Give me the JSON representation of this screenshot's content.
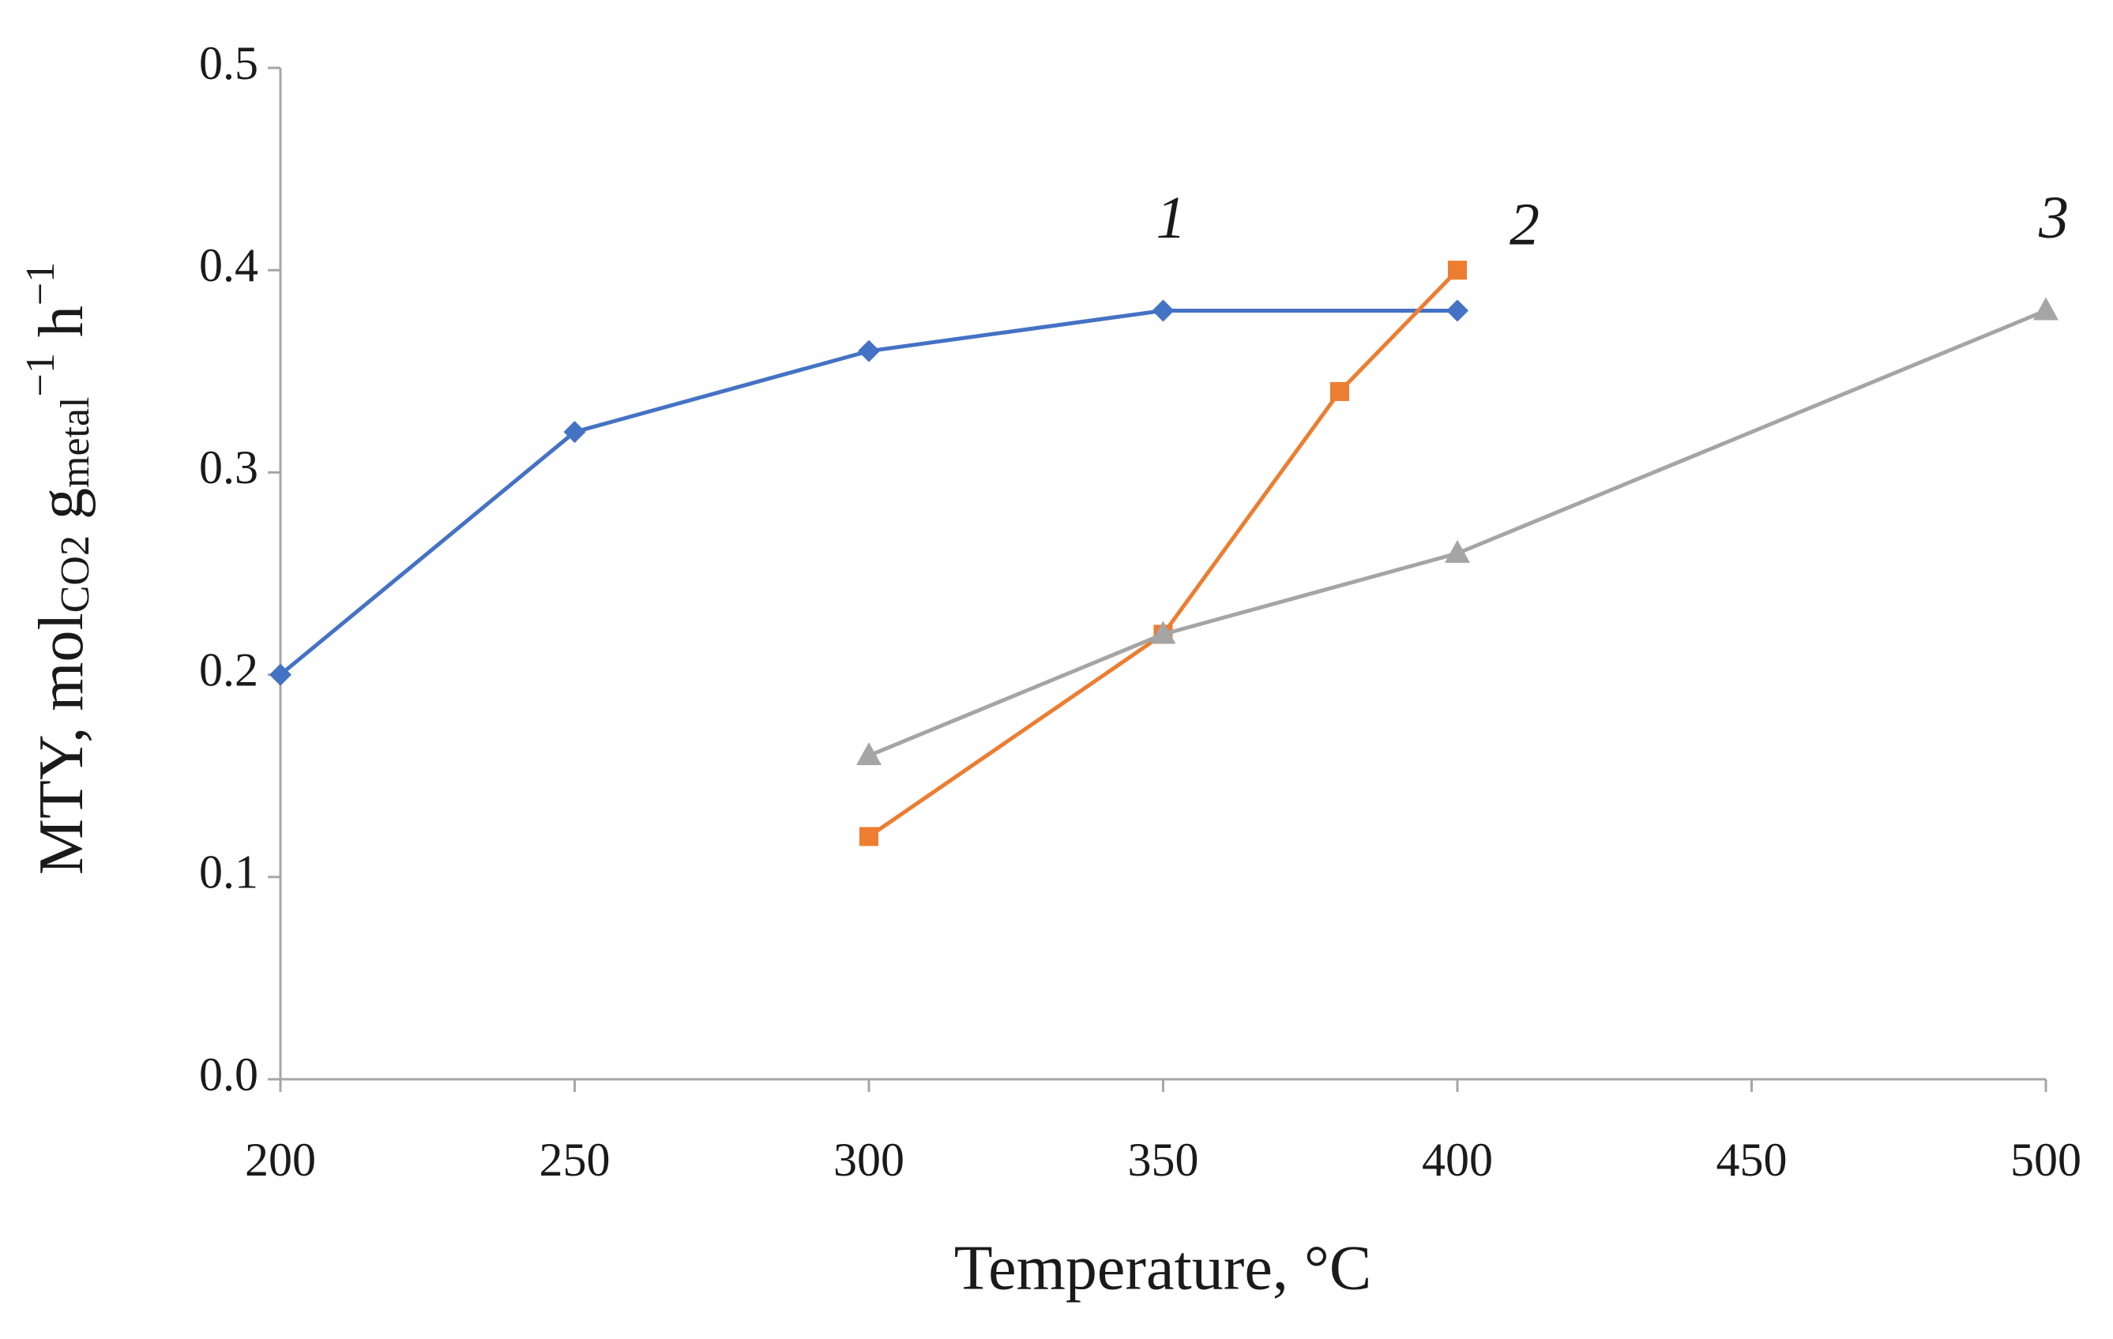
{
  "chart_data": {
    "type": "line",
    "xlabel": "Temperature, °C",
    "ylabel_parts": [
      "MTY, mol",
      "CO2",
      " g",
      "metal",
      "−1",
      " h",
      "−1"
    ],
    "xlim": [
      200,
      500
    ],
    "xticks": [
      200,
      250,
      300,
      350,
      400,
      450,
      500
    ],
    "ylim": [
      0,
      0.5
    ],
    "yticks": [
      {
        "value": 0,
        "label": "0.0"
      },
      0.1,
      0.2,
      0.3,
      0.4,
      0.5
    ],
    "grid": false,
    "series": [
      {
        "name": "1",
        "color": "#4472c4",
        "marker": "diamond",
        "x": [
          200,
          250,
          300,
          350,
          400
        ],
        "values": [
          0.2,
          0.32,
          0.36,
          0.38,
          0.38
        ]
      },
      {
        "name": "2",
        "color": "#ed7d31",
        "marker": "square",
        "x": [
          300,
          350,
          380,
          400
        ],
        "values": [
          0.12,
          0.22,
          0.34,
          0.4
        ]
      },
      {
        "name": "3",
        "color": "#a5a5a5",
        "marker": "triangle",
        "x": [
          300,
          350,
          400,
          500
        ],
        "values": [
          0.16,
          0.22,
          0.26,
          0.38
        ]
      }
    ]
  }
}
